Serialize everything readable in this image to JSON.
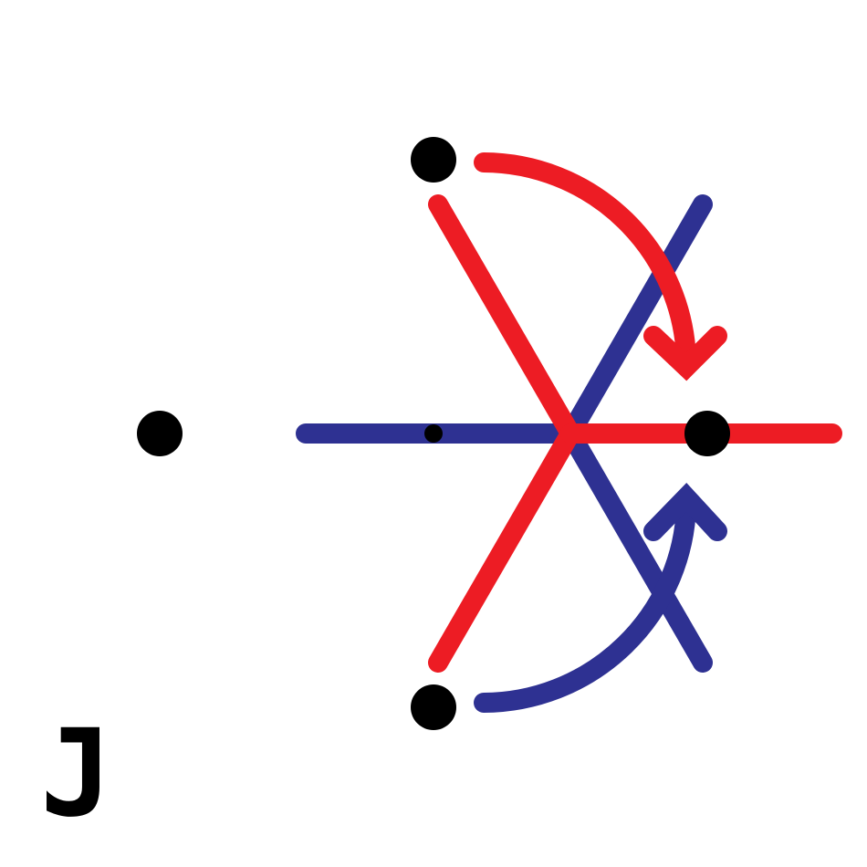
{
  "label": "J",
  "colors": {
    "red": "#ed1c24",
    "blue": "#2e3192",
    "black": "#000000",
    "background": "#ffffff"
  }
}
